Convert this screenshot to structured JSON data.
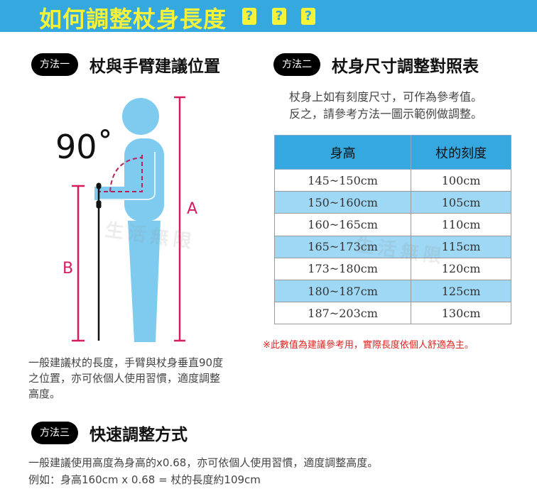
{
  "banner": {
    "title": "如何調整杖身長度",
    "q": "?"
  },
  "method1": {
    "badge": "方法一",
    "title": "杖與手臂建議位置",
    "angle": "90˚",
    "label_a": "A",
    "label_b": "B",
    "note": [
      "一般建議杖的長度，手臂與杖身垂直90度",
      "之位置，亦可依個人使用習慣，適度調整",
      "高度。"
    ]
  },
  "method2": {
    "badge": "方法二",
    "title": "杖身尺寸調整對照表",
    "intro": [
      "杖身上如有刻度尺寸，可作為參考值。",
      "反之，請參考方法一圖示範例做調整。"
    ],
    "headers": [
      "身高",
      "杖的刻度"
    ],
    "rows": [
      [
        "145~150cm",
        "100cm"
      ],
      [
        "150~160cm",
        "105cm"
      ],
      [
        "160~165cm",
        "110cm"
      ],
      [
        "165~173cm",
        "115cm"
      ],
      [
        "173~180cm",
        "120cm"
      ],
      [
        "180~187cm",
        "125cm"
      ],
      [
        "187~203cm",
        "130cm"
      ]
    ],
    "footnote": "※此數值為建議參考用，實際長度依個人舒適為主。"
  },
  "method3": {
    "badge": "方法三",
    "title": "快速調整方式",
    "lines": [
      "一般建議使用高度為身高的x0.68，亦可依個人使用習慣，適度調整高度。",
      "例如：身高160cm x 0.68 = 杖的長度約109cm"
    ]
  },
  "watermark": "生活無限",
  "colors": {
    "banner": "#35a8e0",
    "title": "#f5f23a",
    "figure": "#7ecbef",
    "measure": "#d81b60",
    "row_alt": "#9ed8f4",
    "footnote": "#e02020"
  }
}
